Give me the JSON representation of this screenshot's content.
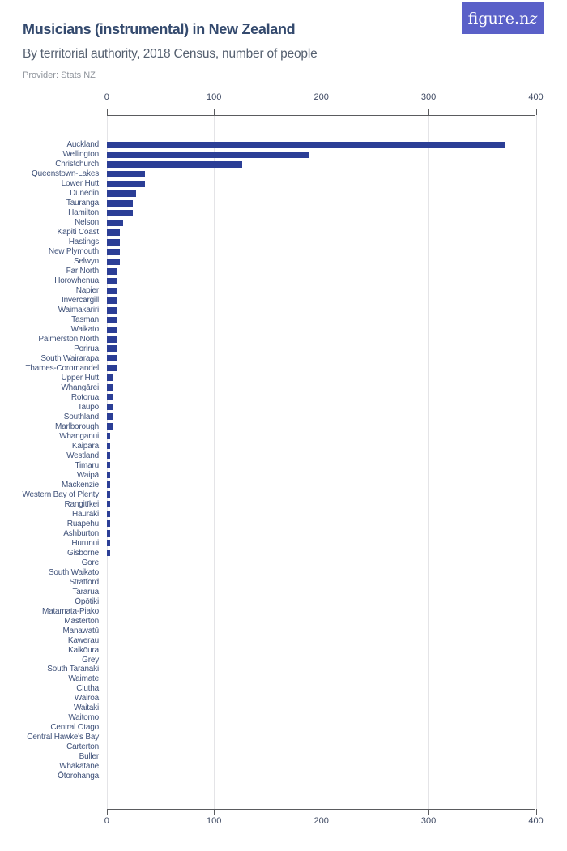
{
  "header": {
    "title": "Musicians (instrumental) in New Zealand",
    "subtitle": "By territorial authority, 2018 Census, number of people",
    "provider": "Provider: Stats NZ",
    "logo_text_main": "figure.n",
    "logo_text_zed": "z"
  },
  "colors": {
    "bar": "#2b3e96",
    "grid": "#e4e4e7",
    "axis": "#5a5b5e",
    "tick_label": "#3f4a63",
    "cat_label": "#3e5078",
    "title": "#344a6e",
    "subtitle": "#556070",
    "provider": "#8f949c",
    "logo_bg": "#5a60c8"
  },
  "chart_data": {
    "type": "bar",
    "orientation": "horizontal",
    "title": "Musicians (instrumental) in New Zealand",
    "subtitle": "By territorial authority, 2018 Census, number of people",
    "xlabel": "number of people",
    "ylabel": "territorial authority",
    "xlim": [
      0,
      400
    ],
    "xticks": [
      0,
      100,
      200,
      300,
      400
    ],
    "grid": true,
    "categories": [
      "Auckland",
      "Wellington",
      "Christchurch",
      "Queenstown-Lakes",
      "Lower Hutt",
      "Dunedin",
      "Tauranga",
      "Hamilton",
      "Nelson",
      "Kāpiti Coast",
      "Hastings",
      "New Plymouth",
      "Selwyn",
      "Far North",
      "Horowhenua",
      "Napier",
      "Invercargill",
      "Waimakariri",
      "Tasman",
      "Waikato",
      "Palmerston North",
      "Porirua",
      "South Wairarapa",
      "Thames-Coromandel",
      "Upper Hutt",
      "Whangārei",
      "Rotorua",
      "Taupō",
      "Southland",
      "Marlborough",
      "Whanganui",
      "Kaipara",
      "Westland",
      "Timaru",
      "Waipā",
      "Mackenzie",
      "Western Bay of Plenty",
      "Rangitīkei",
      "Hauraki",
      "Ruapehu",
      "Ashburton",
      "Hurunui",
      "Gisborne",
      "Gore",
      "South Waikato",
      "Stratford",
      "Tararua",
      "Ōpōtiki",
      "Matamata-Piako",
      "Masterton",
      "Manawatū",
      "Kawerau",
      "Kaikōura",
      "Grey",
      "South Taranaki",
      "Waimate",
      "Clutha",
      "Wairoa",
      "Waitaki",
      "Waitomo",
      "Central Otago",
      "Central Hawke's Bay",
      "Carterton",
      "Buller",
      "Whakatāne",
      "Ōtorohanga"
    ],
    "values": [
      372,
      189,
      126,
      36,
      36,
      27,
      24,
      24,
      15,
      12,
      12,
      12,
      12,
      9,
      9,
      9,
      9,
      9,
      9,
      9,
      9,
      9,
      9,
      9,
      6,
      6,
      6,
      6,
      6,
      6,
      3,
      3,
      3,
      3,
      3,
      3,
      3,
      3,
      3,
      3,
      3,
      3,
      3,
      0,
      0,
      0,
      0,
      0,
      0,
      0,
      0,
      0,
      0,
      0,
      0,
      0,
      0,
      0,
      0,
      0,
      0,
      0,
      0,
      0,
      0,
      0
    ]
  }
}
